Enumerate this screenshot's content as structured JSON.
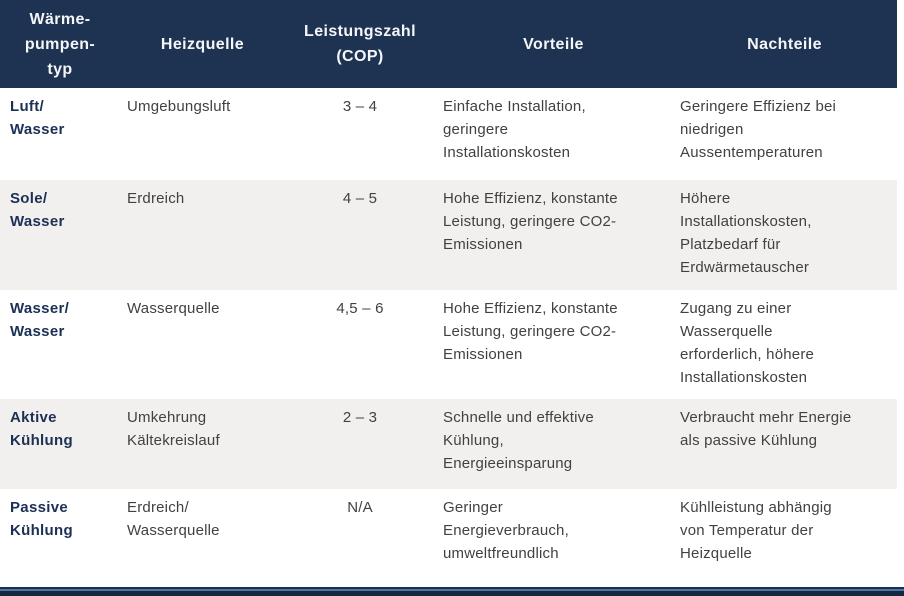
{
  "table": {
    "headers": {
      "type": "Wärme-\npumpen-\ntyp",
      "source": "Heizquelle",
      "cop": "Leistungszahl\n(COP)",
      "pros": "Vorteile",
      "cons": "Nachteile"
    },
    "rows": [
      {
        "type": "Luft/\nWasser",
        "source": "Umgebungsluft",
        "cop": "3 – 4",
        "pros": "Einfache Installation,\ngeringere\nInstallationskosten",
        "cons": "Geringere Effizienz bei\nniedrigen\nAussentemperaturen"
      },
      {
        "type": "Sole/\nWasser",
        "source": "Erdreich",
        "cop": "4 – 5",
        "pros": "Hohe Effizienz, konstante\nLeistung, geringere CO2-\nEmissionen",
        "cons": "Höhere\nInstallationskosten,\nPlatzbedarf für\nErdwärmetauscher"
      },
      {
        "type": "Wasser/\nWasser",
        "source": "Wasserquelle",
        "cop": "4,5 – 6",
        "pros": "Hohe Effizienz, konstante\nLeistung, geringere CO2-\nEmissionen",
        "cons": "Zugang zu einer\nWasserquelle\nerforderlich, höhere\nInstallationskosten"
      },
      {
        "type": "Aktive\nKühlung",
        "source": "Umkehrung\nKältekreislauf",
        "cop": "2 – 3",
        "pros": "Schnelle und effektive\nKühlung,\nEnergieeinsparung",
        "cons": "Verbraucht mehr Energie\nals passive Kühlung"
      },
      {
        "type": "Passive\nKühlung",
        "source": "Erdreich/\nWasserquelle",
        "cop": "N/A",
        "pros": "Geringer\nEnergieverbrauch,\numweltfreundlich",
        "cons": "Kühlleistung abhängig\nvon Temperatur der\nHeizquelle"
      }
    ]
  },
  "colors": {
    "header_bg": "#1e3351",
    "header_text": "#f4f6f9",
    "type_text": "#1c3055",
    "body_text": "#414141",
    "stripe_bg": "#f1f0ee",
    "footer_dark": "#152640",
    "footer_accent": "#4f74a1"
  }
}
